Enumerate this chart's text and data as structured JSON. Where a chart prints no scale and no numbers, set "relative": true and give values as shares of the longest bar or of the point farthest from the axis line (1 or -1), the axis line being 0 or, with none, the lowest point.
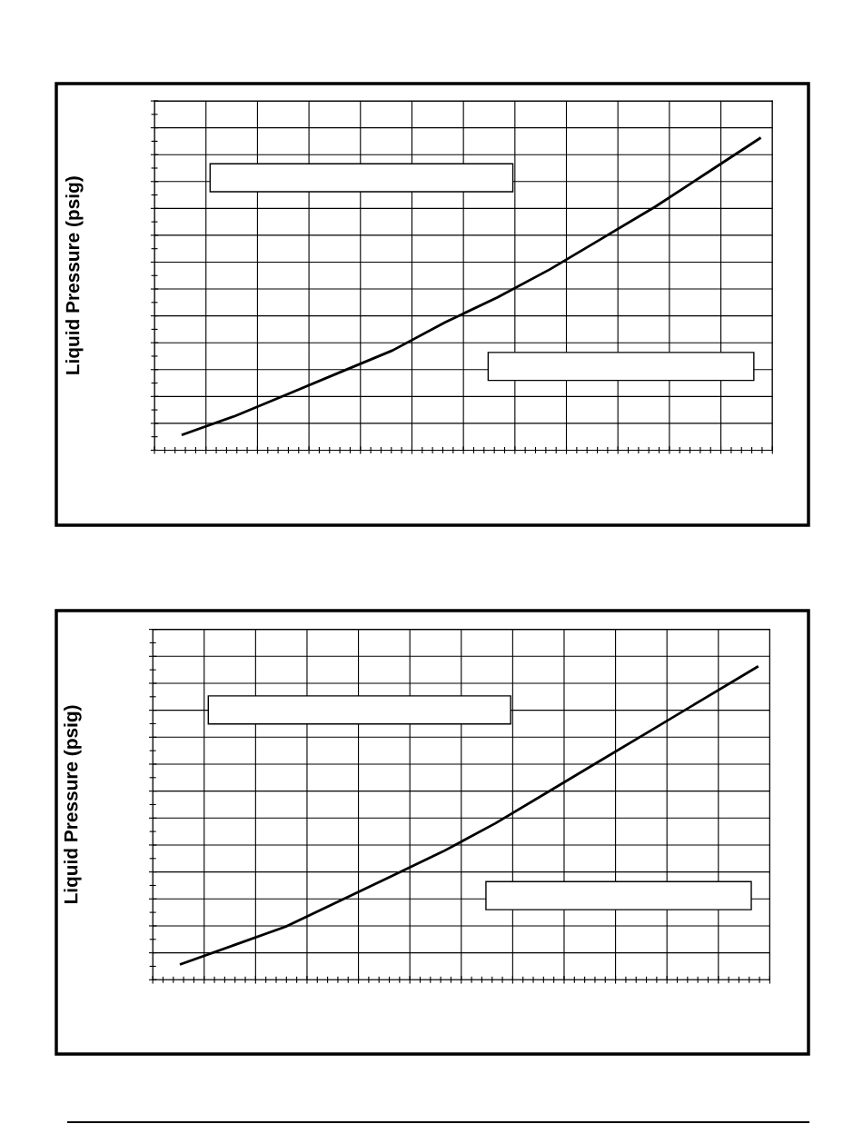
{
  "chart_data": [
    {
      "type": "line",
      "ylabel": "Liquid Pressure (psig)",
      "relative": true,
      "grid": true,
      "tick_labels": false,
      "marker": "none",
      "line_style": "solid",
      "categories": [
        null,
        null,
        null,
        null,
        null,
        null,
        null,
        null,
        null,
        null,
        null,
        null
      ],
      "series": [
        {
          "color": "#000000",
          "values": [
            0.05,
            0.11,
            0.18,
            0.25,
            0.32,
            0.41,
            0.49,
            0.58,
            0.68,
            0.78,
            0.89,
            1.0
          ]
        }
      ]
    },
    {
      "type": "line",
      "ylabel": "Liquid Pressure (psig)",
      "relative": true,
      "grid": true,
      "tick_labels": false,
      "marker": "none",
      "line_style": "solid",
      "categories": [
        null,
        null,
        null,
        null,
        null,
        null,
        null,
        null,
        null,
        null,
        null,
        null
      ],
      "series": [
        {
          "color": "#000000",
          "values": [
            0.05,
            0.11,
            0.17,
            0.25,
            0.33,
            0.41,
            0.5,
            0.6,
            0.7,
            0.8,
            0.9,
            1.0
          ]
        }
      ]
    }
  ]
}
